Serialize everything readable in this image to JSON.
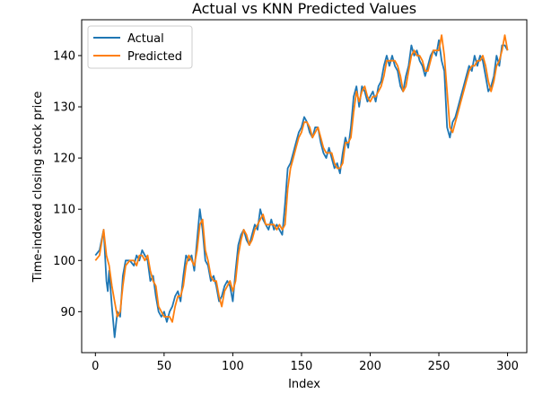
{
  "chart_data": {
    "type": "line",
    "title": "Actual vs KNN Predicted Values",
    "xlabel": "Index",
    "ylabel": "Time-indexed closing stock price",
    "xlim": [
      -10,
      314
    ],
    "ylim": [
      82,
      147
    ],
    "xticks": [
      0,
      50,
      100,
      150,
      200,
      250,
      300
    ],
    "yticks": [
      90,
      100,
      110,
      120,
      130,
      140
    ],
    "legend_position": "upper-left",
    "grid": false,
    "series": [
      {
        "name": "Actual",
        "color": "#1f77b4",
        "points": [
          [
            0,
            101
          ],
          [
            3,
            102
          ],
          [
            6,
            106
          ],
          [
            8,
            96
          ],
          [
            9,
            94
          ],
          [
            10,
            98
          ],
          [
            12,
            91
          ],
          [
            14,
            85
          ],
          [
            16,
            90
          ],
          [
            18,
            89
          ],
          [
            20,
            97
          ],
          [
            22,
            100
          ],
          [
            25,
            100
          ],
          [
            28,
            99
          ],
          [
            30,
            101
          ],
          [
            32,
            100
          ],
          [
            34,
            102
          ],
          [
            36,
            101
          ],
          [
            38,
            100
          ],
          [
            40,
            96
          ],
          [
            42,
            97
          ],
          [
            44,
            93
          ],
          [
            46,
            90
          ],
          [
            48,
            89
          ],
          [
            50,
            90
          ],
          [
            52,
            88
          ],
          [
            54,
            90
          ],
          [
            56,
            91
          ],
          [
            58,
            93
          ],
          [
            60,
            94
          ],
          [
            62,
            92
          ],
          [
            64,
            97
          ],
          [
            66,
            101
          ],
          [
            68,
            100
          ],
          [
            70,
            101
          ],
          [
            72,
            98
          ],
          [
            74,
            104
          ],
          [
            76,
            110
          ],
          [
            78,
            106
          ],
          [
            80,
            100
          ],
          [
            82,
            99
          ],
          [
            84,
            96
          ],
          [
            86,
            97
          ],
          [
            88,
            95
          ],
          [
            90,
            92
          ],
          [
            92,
            93
          ],
          [
            94,
            95
          ],
          [
            96,
            96
          ],
          [
            98,
            95
          ],
          [
            100,
            92
          ],
          [
            102,
            98
          ],
          [
            104,
            103
          ],
          [
            106,
            105
          ],
          [
            108,
            106
          ],
          [
            110,
            104
          ],
          [
            112,
            103
          ],
          [
            114,
            105
          ],
          [
            116,
            107
          ],
          [
            118,
            106
          ],
          [
            120,
            110
          ],
          [
            122,
            108
          ],
          [
            124,
            107
          ],
          [
            126,
            106
          ],
          [
            128,
            108
          ],
          [
            130,
            106
          ],
          [
            132,
            107
          ],
          [
            134,
            106
          ],
          [
            136,
            105
          ],
          [
            138,
            111
          ],
          [
            140,
            118
          ],
          [
            142,
            119
          ],
          [
            144,
            121
          ],
          [
            146,
            123
          ],
          [
            148,
            125
          ],
          [
            150,
            126
          ],
          [
            152,
            128
          ],
          [
            154,
            127
          ],
          [
            156,
            125
          ],
          [
            158,
            124
          ],
          [
            160,
            126
          ],
          [
            162,
            126
          ],
          [
            164,
            123
          ],
          [
            166,
            121
          ],
          [
            168,
            120
          ],
          [
            170,
            122
          ],
          [
            172,
            120
          ],
          [
            174,
            118
          ],
          [
            176,
            119
          ],
          [
            178,
            117
          ],
          [
            180,
            121
          ],
          [
            182,
            124
          ],
          [
            184,
            122
          ],
          [
            186,
            126
          ],
          [
            188,
            132
          ],
          [
            190,
            134
          ],
          [
            192,
            130
          ],
          [
            194,
            134
          ],
          [
            196,
            133
          ],
          [
            198,
            131
          ],
          [
            200,
            132
          ],
          [
            202,
            133
          ],
          [
            204,
            131
          ],
          [
            206,
            134
          ],
          [
            208,
            135
          ],
          [
            210,
            138
          ],
          [
            212,
            140
          ],
          [
            214,
            138
          ],
          [
            216,
            140
          ],
          [
            218,
            138
          ],
          [
            220,
            137
          ],
          [
            222,
            134
          ],
          [
            224,
            133
          ],
          [
            226,
            136
          ],
          [
            228,
            138
          ],
          [
            230,
            142
          ],
          [
            232,
            140
          ],
          [
            234,
            141
          ],
          [
            236,
            139
          ],
          [
            238,
            138
          ],
          [
            240,
            136
          ],
          [
            242,
            138
          ],
          [
            244,
            140
          ],
          [
            246,
            141
          ],
          [
            248,
            140
          ],
          [
            250,
            143
          ],
          [
            252,
            139
          ],
          [
            254,
            137
          ],
          [
            256,
            126
          ],
          [
            258,
            124
          ],
          [
            260,
            127
          ],
          [
            262,
            128
          ],
          [
            264,
            130
          ],
          [
            266,
            132
          ],
          [
            268,
            134
          ],
          [
            270,
            136
          ],
          [
            272,
            138
          ],
          [
            274,
            137
          ],
          [
            276,
            140
          ],
          [
            278,
            138
          ],
          [
            280,
            140
          ],
          [
            282,
            139
          ],
          [
            284,
            136
          ],
          [
            286,
            133
          ],
          [
            288,
            134
          ],
          [
            290,
            136
          ],
          [
            292,
            140
          ],
          [
            294,
            138
          ],
          [
            296,
            142
          ],
          [
            298,
            142
          ],
          [
            300,
            141
          ]
        ]
      },
      {
        "name": "Predicted",
        "color": "#ff7f0e",
        "points": [
          [
            0,
            100
          ],
          [
            3,
            101
          ],
          [
            6,
            106
          ],
          [
            8,
            101
          ],
          [
            9,
            100
          ],
          [
            10,
            99
          ],
          [
            12,
            95
          ],
          [
            14,
            92
          ],
          [
            16,
            89
          ],
          [
            18,
            90
          ],
          [
            20,
            95
          ],
          [
            22,
            99
          ],
          [
            25,
            100
          ],
          [
            28,
            100
          ],
          [
            30,
            99
          ],
          [
            32,
            101
          ],
          [
            34,
            101
          ],
          [
            36,
            100
          ],
          [
            38,
            101
          ],
          [
            40,
            98
          ],
          [
            42,
            96
          ],
          [
            44,
            95
          ],
          [
            46,
            91
          ],
          [
            48,
            90
          ],
          [
            50,
            89
          ],
          [
            52,
            89
          ],
          [
            54,
            89
          ],
          [
            56,
            88
          ],
          [
            58,
            91
          ],
          [
            60,
            93
          ],
          [
            62,
            93
          ],
          [
            64,
            95
          ],
          [
            66,
            99
          ],
          [
            68,
            101
          ],
          [
            70,
            100
          ],
          [
            72,
            99
          ],
          [
            74,
            102
          ],
          [
            76,
            107
          ],
          [
            78,
            108
          ],
          [
            80,
            102
          ],
          [
            82,
            100
          ],
          [
            84,
            97
          ],
          [
            86,
            96
          ],
          [
            88,
            96
          ],
          [
            90,
            93
          ],
          [
            92,
            91
          ],
          [
            94,
            94
          ],
          [
            96,
            95
          ],
          [
            98,
            96
          ],
          [
            100,
            94
          ],
          [
            102,
            96
          ],
          [
            104,
            101
          ],
          [
            106,
            104
          ],
          [
            108,
            106
          ],
          [
            110,
            105
          ],
          [
            112,
            103
          ],
          [
            114,
            104
          ],
          [
            116,
            106
          ],
          [
            118,
            107
          ],
          [
            120,
            108
          ],
          [
            122,
            109
          ],
          [
            124,
            107
          ],
          [
            126,
            107
          ],
          [
            128,
            107
          ],
          [
            130,
            107
          ],
          [
            132,
            106
          ],
          [
            134,
            107
          ],
          [
            136,
            106
          ],
          [
            138,
            107
          ],
          [
            140,
            114
          ],
          [
            142,
            118
          ],
          [
            144,
            120
          ],
          [
            146,
            122
          ],
          [
            148,
            124
          ],
          [
            150,
            125
          ],
          [
            152,
            127
          ],
          [
            154,
            127
          ],
          [
            156,
            126
          ],
          [
            158,
            124
          ],
          [
            160,
            125
          ],
          [
            162,
            126
          ],
          [
            164,
            124
          ],
          [
            166,
            122
          ],
          [
            168,
            121
          ],
          [
            170,
            121
          ],
          [
            172,
            121
          ],
          [
            174,
            119
          ],
          [
            176,
            118
          ],
          [
            178,
            118
          ],
          [
            180,
            119
          ],
          [
            182,
            123
          ],
          [
            184,
            123
          ],
          [
            186,
            124
          ],
          [
            188,
            129
          ],
          [
            190,
            133
          ],
          [
            192,
            131
          ],
          [
            194,
            133
          ],
          [
            196,
            134
          ],
          [
            198,
            132
          ],
          [
            200,
            131
          ],
          [
            202,
            132
          ],
          [
            204,
            132
          ],
          [
            206,
            133
          ],
          [
            208,
            134
          ],
          [
            210,
            136
          ],
          [
            212,
            139
          ],
          [
            214,
            139
          ],
          [
            216,
            139
          ],
          [
            218,
            139
          ],
          [
            220,
            138
          ],
          [
            222,
            136
          ],
          [
            224,
            133
          ],
          [
            226,
            134
          ],
          [
            228,
            137
          ],
          [
            230,
            140
          ],
          [
            232,
            141
          ],
          [
            234,
            140
          ],
          [
            236,
            140
          ],
          [
            238,
            139
          ],
          [
            240,
            137
          ],
          [
            242,
            137
          ],
          [
            244,
            139
          ],
          [
            246,
            141
          ],
          [
            248,
            141
          ],
          [
            250,
            141
          ],
          [
            252,
            144
          ],
          [
            254,
            140
          ],
          [
            256,
            133
          ],
          [
            258,
            126
          ],
          [
            260,
            125
          ],
          [
            262,
            127
          ],
          [
            264,
            129
          ],
          [
            266,
            131
          ],
          [
            268,
            133
          ],
          [
            270,
            135
          ],
          [
            272,
            137
          ],
          [
            274,
            138
          ],
          [
            276,
            138
          ],
          [
            278,
            139
          ],
          [
            280,
            139
          ],
          [
            282,
            140
          ],
          [
            284,
            138
          ],
          [
            286,
            135
          ],
          [
            288,
            133
          ],
          [
            290,
            135
          ],
          [
            292,
            138
          ],
          [
            294,
            139
          ],
          [
            296,
            141
          ],
          [
            298,
            144
          ],
          [
            300,
            141
          ]
        ]
      }
    ]
  }
}
